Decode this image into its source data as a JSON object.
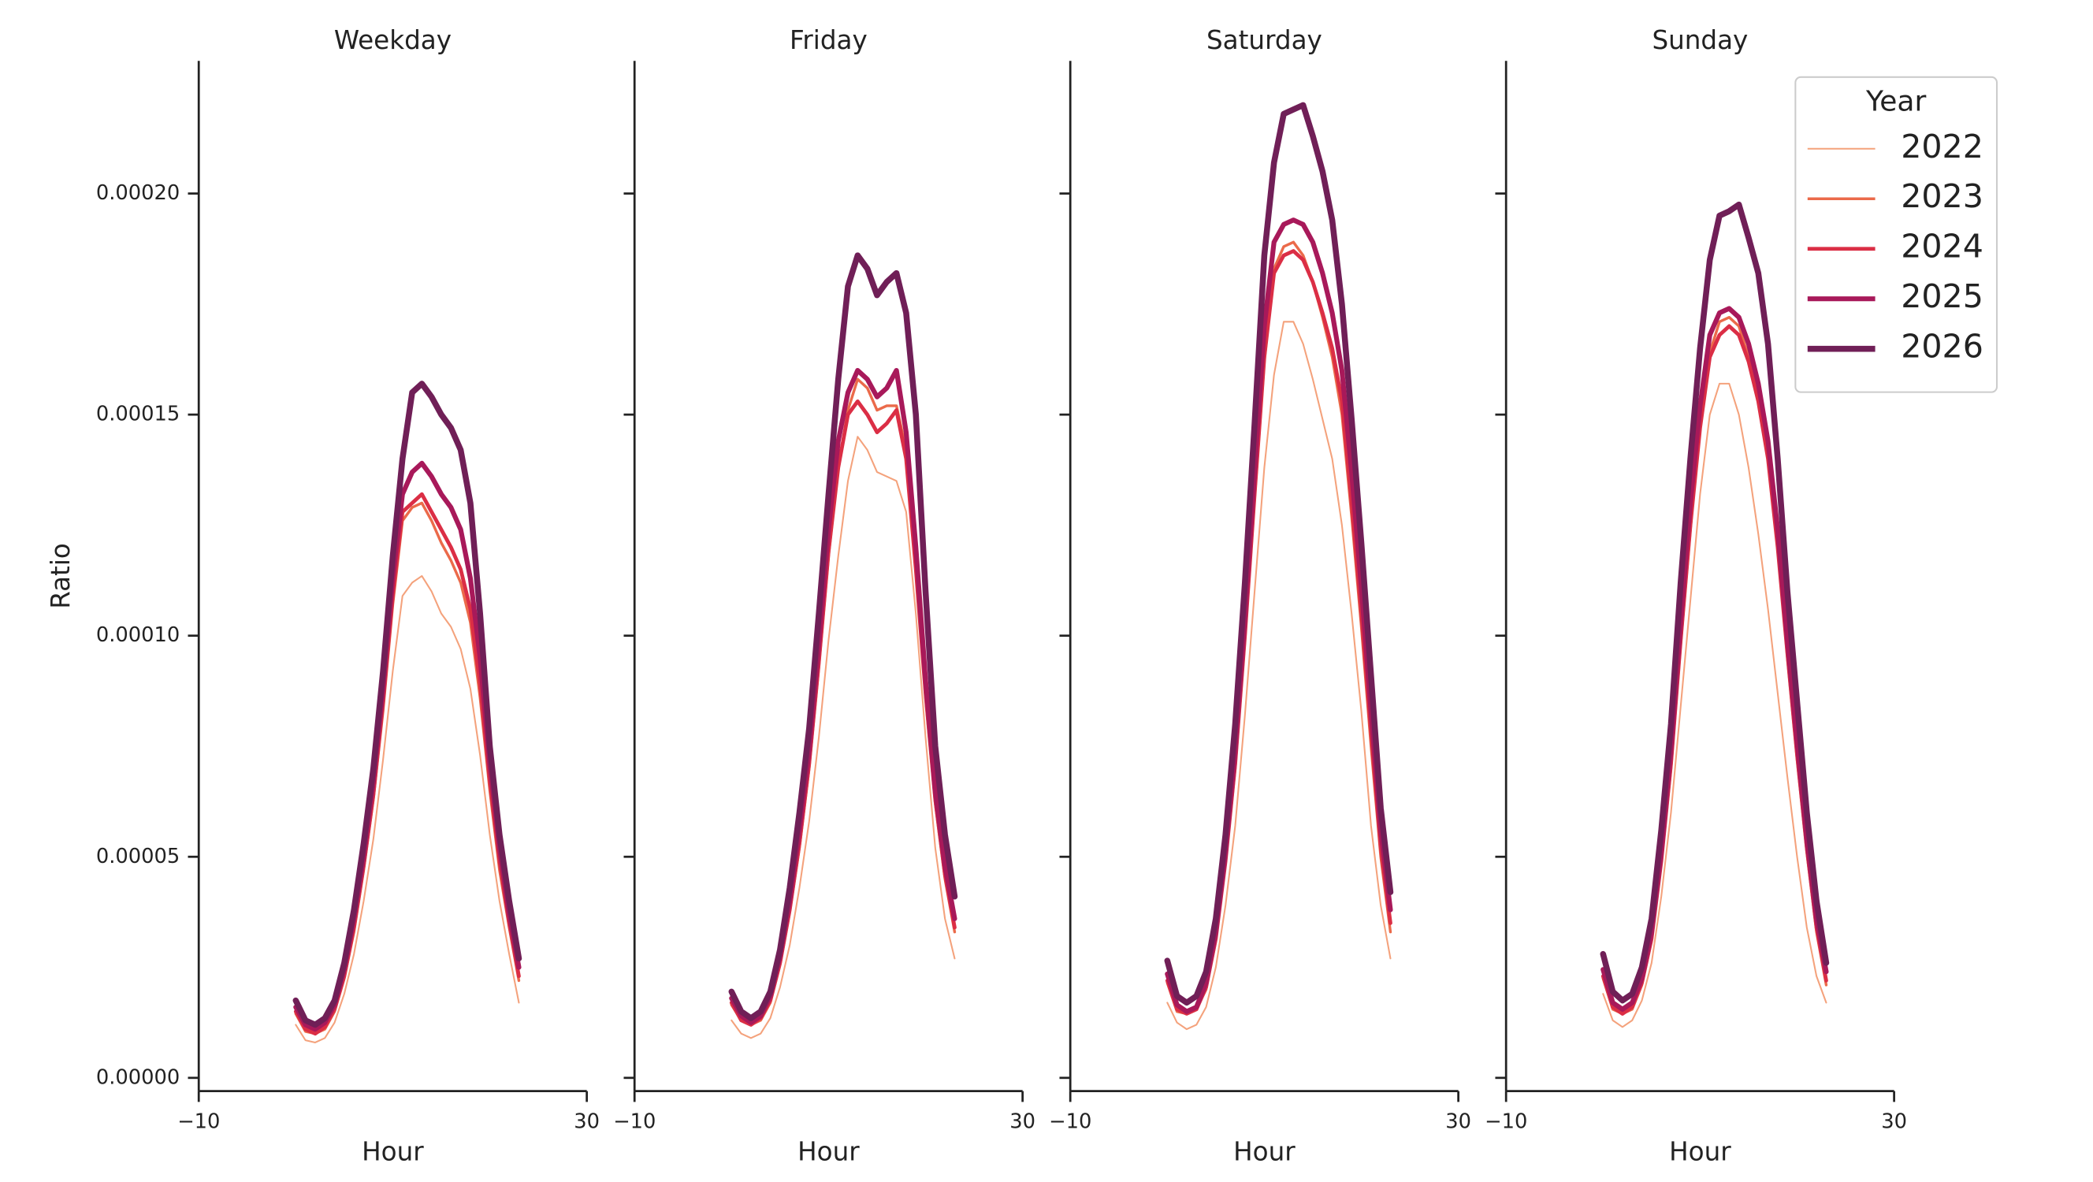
{
  "chart_data": [
    {
      "type": "line",
      "title": "Weekday",
      "xlabel": "Hour",
      "ylabel": "Ratio",
      "x": [
        0,
        1,
        2,
        3,
        4,
        5,
        6,
        7,
        8,
        9,
        10,
        11,
        12,
        13,
        14,
        15,
        16,
        17,
        18,
        19,
        20,
        21,
        22,
        23
      ],
      "xlim": [
        -10,
        30
      ],
      "xticks": [
        {
          "value": -10,
          "label": "−10"
        },
        30
      ],
      "ylim": [
        -3e-06,
        0.00023
      ],
      "yticks": [
        {
          "value": 0,
          "label": "0.00000"
        },
        {
          "value": 5e-05,
          "label": "0.00005"
        },
        {
          "value": 0.0001,
          "label": "0.00010"
        },
        {
          "value": 0.00015,
          "label": "0.00015"
        },
        {
          "value": 0.0002,
          "label": "0.00020"
        }
      ],
      "series": [
        {
          "name": "2022",
          "color": "#f4a27c",
          "values": [
            1.2e-05,
            8.5e-06,
            8e-06,
            9e-06,
            1.25e-05,
            1.9e-05,
            2.8e-05,
            4e-05,
            5.4e-05,
            7.2e-05,
            9.2e-05,
            0.000109,
            0.000112,
            0.0001135,
            0.00011,
            0.000105,
            0.000102,
            9.7e-05,
            8.8e-05,
            7.3e-05,
            5.5e-05,
            4e-05,
            2.8e-05,
            1.7e-05
          ]
        },
        {
          "name": "2023",
          "color": "#eb6a4a",
          "values": [
            1.45e-05,
            1.05e-05,
            1e-05,
            1.1e-05,
            1.5e-05,
            2.25e-05,
            3.3e-05,
            4.7e-05,
            6.3e-05,
            8.3e-05,
            0.000107,
            0.000126,
            0.000129,
            0.00013,
            0.000126,
            0.000121,
            0.000117,
            0.000112,
            0.000103,
            8.6e-05,
            6.5e-05,
            4.7e-05,
            3.4e-05,
            2.2e-05
          ]
        },
        {
          "name": "2024",
          "color": "#db2e45",
          "values": [
            1.5e-05,
            1.1e-05,
            1e-05,
            1.15e-05,
            1.55e-05,
            2.3e-05,
            3.4e-05,
            4.8e-05,
            6.4e-05,
            8.5e-05,
            0.000109,
            0.000128,
            0.00013,
            0.000132,
            0.000128,
            0.000124,
            0.00012,
            0.000115,
            0.000106,
            8.9e-05,
            6.7e-05,
            4.9e-05,
            3.5e-05,
            2.3e-05
          ]
        },
        {
          "name": "2025",
          "color": "#a8195a",
          "values": [
            1.6e-05,
            1.2e-05,
            1.1e-05,
            1.25e-05,
            1.65e-05,
            2.45e-05,
            3.6e-05,
            5e-05,
            6.7e-05,
            8.8e-05,
            0.000113,
            0.000132,
            0.000137,
            0.000139,
            0.000136,
            0.000132,
            0.000129,
            0.000124,
            0.000113,
            9.5e-05,
            7.1e-05,
            5.2e-05,
            3.7e-05,
            2.5e-05
          ]
        },
        {
          "name": "2026",
          "color": "#701f57",
          "values": [
            1.75e-05,
            1.3e-05,
            1.2e-05,
            1.35e-05,
            1.75e-05,
            2.6e-05,
            3.8e-05,
            5.3e-05,
            7e-05,
            9.2e-05,
            0.000118,
            0.00014,
            0.000155,
            0.000157,
            0.000154,
            0.00015,
            0.000147,
            0.000142,
            0.00013,
            0.000105,
            7.5e-05,
            5.5e-05,
            4e-05,
            2.7e-05
          ]
        }
      ]
    },
    {
      "type": "line",
      "title": "Friday",
      "xlabel": "Hour",
      "sharey": true,
      "x": [
        0,
        1,
        2,
        3,
        4,
        5,
        6,
        7,
        8,
        9,
        10,
        11,
        12,
        13,
        14,
        15,
        16,
        17,
        18,
        19,
        20,
        21,
        22,
        23
      ],
      "xlim": [
        -10,
        30
      ],
      "xticks": [
        {
          "value": -10,
          "label": "−10"
        },
        30
      ],
      "series": [
        {
          "name": "2022",
          "color": "#f4a27c",
          "values": [
            1.3e-05,
            1e-05,
            9e-06,
            1e-05,
            1.35e-05,
            2.05e-05,
            3e-05,
            4.3e-05,
            5.8e-05,
            7.7e-05,
            9.9e-05,
            0.000118,
            0.000135,
            0.000145,
            0.000142,
            0.000137,
            0.000136,
            0.000135,
            0.000128,
            0.000105,
            7.7e-05,
            5.2e-05,
            3.6e-05,
            2.7e-05
          ]
        },
        {
          "name": "2023",
          "color": "#eb6a4a",
          "values": [
            1.65e-05,
            1.3e-05,
            1.2e-05,
            1.3e-05,
            1.7e-05,
            2.55e-05,
            3.75e-05,
            5.2e-05,
            7e-05,
            9.3e-05,
            0.000118,
            0.000138,
            0.000151,
            0.000158,
            0.000156,
            0.000151,
            0.000152,
            0.000152,
            0.000142,
            0.000115,
            8.6e-05,
            6.2e-05,
            4.5e-05,
            3.3e-05
          ]
        },
        {
          "name": "2024",
          "color": "#db2e45",
          "values": [
            1.7e-05,
            1.3e-05,
            1.2e-05,
            1.35e-05,
            1.75e-05,
            2.6e-05,
            3.8e-05,
            5.3e-05,
            7.1e-05,
            9.4e-05,
            0.000119,
            0.000138,
            0.00015,
            0.000153,
            0.00015,
            0.000146,
            0.000148,
            0.000151,
            0.00014,
            0.000115,
            8.7e-05,
            6.3e-05,
            4.6e-05,
            3.4e-05
          ]
        },
        {
          "name": "2025",
          "color": "#a8195a",
          "values": [
            1.8e-05,
            1.4e-05,
            1.25e-05,
            1.4e-05,
            1.85e-05,
            2.75e-05,
            4e-05,
            5.6e-05,
            7.4e-05,
            9.8e-05,
            0.000124,
            0.000144,
            0.000155,
            0.00016,
            0.000158,
            0.000154,
            0.000156,
            0.00016,
            0.000146,
            0.00012,
            9e-05,
            6.5e-05,
            4.8e-05,
            3.6e-05
          ]
        },
        {
          "name": "2026",
          "color": "#701f57",
          "values": [
            1.95e-05,
            1.5e-05,
            1.35e-05,
            1.5e-05,
            1.95e-05,
            2.9e-05,
            4.3e-05,
            6e-05,
            7.9e-05,
            0.000105,
            0.000132,
            0.000158,
            0.000179,
            0.000186,
            0.000183,
            0.000177,
            0.00018,
            0.000182,
            0.000173,
            0.00015,
            0.00011,
            7.5e-05,
            5.5e-05,
            4.1e-05
          ]
        }
      ]
    },
    {
      "type": "line",
      "title": "Saturday",
      "xlabel": "Hour",
      "sharey": true,
      "x": [
        0,
        1,
        2,
        3,
        4,
        5,
        6,
        7,
        8,
        9,
        10,
        11,
        12,
        13,
        14,
        15,
        16,
        17,
        18,
        19,
        20,
        21,
        22,
        23
      ],
      "xlim": [
        -10,
        30
      ],
      "xticks": [
        {
          "value": -10,
          "label": "−10"
        },
        30
      ],
      "series": [
        {
          "name": "2022",
          "color": "#f4a27c",
          "values": [
            1.7e-05,
            1.25e-05,
            1.1e-05,
            1.2e-05,
            1.6e-05,
            2.5e-05,
            3.9e-05,
            5.7e-05,
            8.2e-05,
            0.00011,
            0.000138,
            0.000159,
            0.000171,
            0.000171,
            0.000166,
            0.000158,
            0.000149,
            0.00014,
            0.000125,
            0.000105,
            8.3e-05,
            5.7e-05,
            3.9e-05,
            2.7e-05
          ]
        },
        {
          "name": "2023",
          "color": "#eb6a4a",
          "values": [
            2.15e-05,
            1.5e-05,
            1.45e-05,
            1.55e-05,
            2e-05,
            3.1e-05,
            4.85e-05,
            7e-05,
            9.9e-05,
            0.000131,
            0.000162,
            0.000183,
            0.000188,
            0.000189,
            0.000186,
            0.00018,
            0.000172,
            0.000163,
            0.00015,
            0.000127,
            0.000102,
            7.5e-05,
            5e-05,
            3.3e-05
          ]
        },
        {
          "name": "2024",
          "color": "#db2e45",
          "values": [
            2.2e-05,
            1.55e-05,
            1.45e-05,
            1.55e-05,
            2.05e-05,
            3.15e-05,
            4.9e-05,
            7.1e-05,
            0.0001,
            0.000132,
            0.000163,
            0.000182,
            0.000186,
            0.000187,
            0.000185,
            0.00018,
            0.000173,
            0.000165,
            0.000153,
            0.00013,
            0.000105,
            7.8e-05,
            5.2e-05,
            3.5e-05
          ]
        },
        {
          "name": "2025",
          "color": "#a8195a",
          "values": [
            2.35e-05,
            1.65e-05,
            1.5e-05,
            1.6e-05,
            2.15e-05,
            3.3e-05,
            5.1e-05,
            7.4e-05,
            0.000104,
            0.000137,
            0.00017,
            0.000189,
            0.000193,
            0.000194,
            0.000193,
            0.000189,
            0.000182,
            0.000173,
            0.00016,
            0.000137,
            0.000111,
            8.3e-05,
            5.6e-05,
            3.8e-05
          ]
        },
        {
          "name": "2026",
          "color": "#701f57",
          "values": [
            2.65e-05,
            1.85e-05,
            1.7e-05,
            1.85e-05,
            2.4e-05,
            3.6e-05,
            5.5e-05,
            8e-05,
            0.000112,
            0.000148,
            0.000186,
            0.000207,
            0.000218,
            0.000219,
            0.00022,
            0.000213,
            0.000205,
            0.000194,
            0.000175,
            0.000149,
            0.000121,
            9.1e-05,
            6.1e-05,
            4.2e-05
          ]
        }
      ]
    },
    {
      "type": "line",
      "title": "Sunday",
      "xlabel": "Hour",
      "sharey": true,
      "x": [
        0,
        1,
        2,
        3,
        4,
        5,
        6,
        7,
        8,
        9,
        10,
        11,
        12,
        13,
        14,
        15,
        16,
        17,
        18,
        19,
        20,
        21,
        22,
        23
      ],
      "xlim": [
        -10,
        30
      ],
      "xticks": [
        {
          "value": -10,
          "label": "−10"
        },
        30
      ],
      "legend": {
        "title": "Year",
        "loc": "upper right"
      },
      "series": [
        {
          "name": "2022",
          "color": "#f4a27c",
          "values": [
            1.9e-05,
            1.3e-05,
            1.15e-05,
            1.3e-05,
            1.75e-05,
            2.6e-05,
            4.1e-05,
            6e-05,
            8.4e-05,
            0.000108,
            0.000132,
            0.00015,
            0.000157,
            0.000157,
            0.00015,
            0.000138,
            0.000123,
            0.000106,
            8.7e-05,
            6.8e-05,
            5e-05,
            3.4e-05,
            2.3e-05,
            1.7e-05
          ]
        },
        {
          "name": "2023",
          "color": "#eb6a4a",
          "values": [
            2.25e-05,
            1.55e-05,
            1.45e-05,
            1.55e-05,
            2.1e-05,
            3.1e-05,
            4.85e-05,
            7e-05,
            9.8e-05,
            0.000124,
            0.000148,
            0.000164,
            0.000171,
            0.000172,
            0.00017,
            0.000163,
            0.000154,
            0.00014,
            0.00012,
            9.5e-05,
            7.2e-05,
            5.1e-05,
            3.3e-05,
            2.1e-05
          ]
        },
        {
          "name": "2024",
          "color": "#db2e45",
          "values": [
            2.3e-05,
            1.6e-05,
            1.45e-05,
            1.6e-05,
            2.15e-05,
            3.15e-05,
            4.9e-05,
            7.1e-05,
            9.9e-05,
            0.000125,
            0.000147,
            0.000163,
            0.000168,
            0.00017,
            0.000168,
            0.000162,
            0.000153,
            0.00014,
            0.00012,
            9.6e-05,
            7.3e-05,
            5.2e-05,
            3.4e-05,
            2.2e-05
          ]
        },
        {
          "name": "2025",
          "color": "#a8195a",
          "values": [
            2.45e-05,
            1.7e-05,
            1.55e-05,
            1.7e-05,
            2.25e-05,
            3.3e-05,
            5.1e-05,
            7.4e-05,
            0.000103,
            0.00013,
            0.000152,
            0.000168,
            0.000173,
            0.000174,
            0.000172,
            0.000166,
            0.000157,
            0.000144,
            0.000124,
            9.9e-05,
            7.6e-05,
            5.4e-05,
            3.6e-05,
            2.4e-05
          ]
        },
        {
          "name": "2026",
          "color": "#701f57",
          "values": [
            2.8e-05,
            1.95e-05,
            1.75e-05,
            1.9e-05,
            2.5e-05,
            3.6e-05,
            5.6e-05,
            8e-05,
            0.000112,
            0.00014,
            0.000165,
            0.000185,
            0.000195,
            0.000196,
            0.0001975,
            0.00019,
            0.000182,
            0.000166,
            0.00014,
            0.00011,
            8.5e-05,
            6e-05,
            4e-05,
            2.6e-05
          ]
        }
      ]
    }
  ]
}
